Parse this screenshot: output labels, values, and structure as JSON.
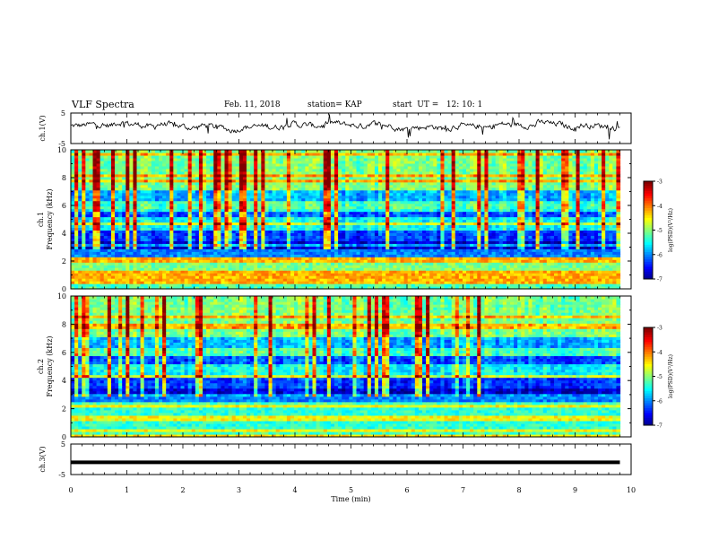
{
  "header": {
    "title": "VLF Spectra",
    "date": "Feb. 11, 2018",
    "station": "station= KAP",
    "start": "start  UT =   12: 10: 1"
  },
  "chart_data": [
    {
      "type": "line",
      "panel": "ch1-waveform",
      "ylabel": "ch.1(V)",
      "ylim": [
        -5,
        5
      ],
      "yticks": [
        "5",
        "-5"
      ],
      "x_range_min": [
        0,
        9.8
      ],
      "description_values": "noisy waveform fluctuating roughly between -2 and +3 V",
      "samples": [
        0.5,
        1.2,
        -0.8,
        2.1,
        0.3,
        -1.5,
        1.8,
        0.9,
        -0.4,
        2.6,
        1.1,
        -1.9,
        0.7,
        1.5,
        -0.6,
        2.2,
        0.1,
        -1.2,
        1.9,
        0.4,
        -0.9,
        2.8,
        1.3,
        -1.6,
        0.6,
        1.7,
        -0.3,
        2.0,
        0.8,
        -1.4,
        1.6,
        0.2,
        -1.1,
        2.4,
        1.0,
        -1.8,
        0.9,
        1.4,
        -0.5,
        2.3
      ]
    },
    {
      "type": "heatmap",
      "panel": "ch1-spectrogram",
      "ylabel_top": "ch.1",
      "ylabel": "Frequency  (kHz)",
      "ylim": [
        0,
        10
      ],
      "yticks": [
        "0",
        "2",
        "4",
        "6",
        "8",
        "10"
      ],
      "colorbar": {
        "label": "log(PSD)(V²/Hz)",
        "range": [
          -7,
          -3
        ],
        "ticks": [
          "-3",
          "-4",
          "-5",
          "-6",
          "-7"
        ]
      }
    },
    {
      "type": "heatmap",
      "panel": "ch2-spectrogram",
      "ylabel_top": "ch.2",
      "ylabel": "Frequency  (kHz)",
      "ylim": [
        0,
        10
      ],
      "yticks": [
        "0",
        "2",
        "4",
        "6",
        "8",
        "10"
      ],
      "colorbar": {
        "label": "log(PSD)(V²/Hz)",
        "range": [
          -7,
          -3
        ],
        "ticks": [
          "-3",
          "-4",
          "-5",
          "-6",
          "-7"
        ]
      }
    },
    {
      "type": "line",
      "panel": "ch3-waveform",
      "ylabel": "ch.3(V)",
      "ylim": [
        -5,
        5
      ],
      "yticks": [
        "5",
        "-5"
      ],
      "values_constant": -1,
      "xlabel": "Time  (min)",
      "xlim": [
        0,
        10
      ],
      "xticks": [
        "0",
        "1",
        "2",
        "3",
        "4",
        "5",
        "6",
        "7",
        "8",
        "9",
        "10"
      ]
    }
  ]
}
